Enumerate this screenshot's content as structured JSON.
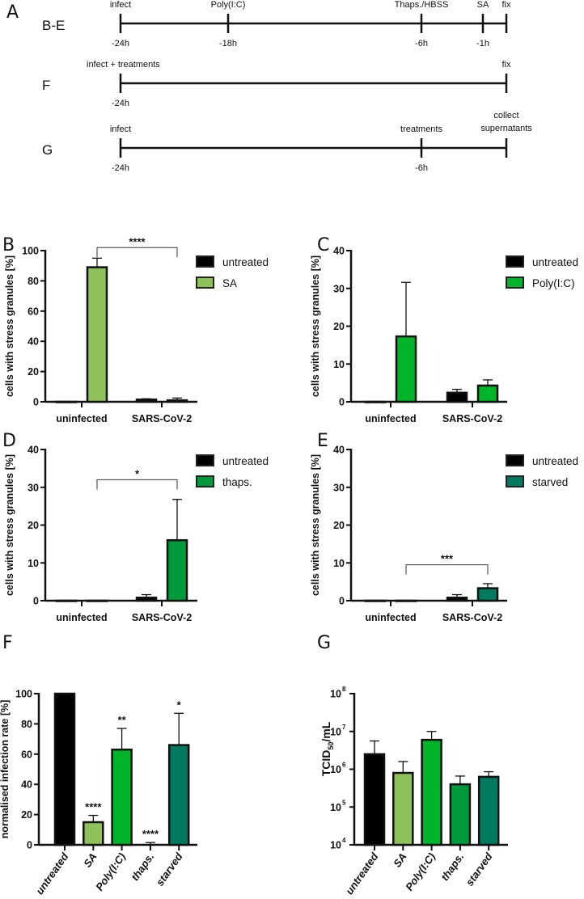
{
  "panel_letters": {
    "A": "A",
    "B": "B",
    "C": "C",
    "D": "D",
    "E": "E",
    "F": "F",
    "G": "G"
  },
  "timelines": [
    {
      "label": "B-E",
      "events": [
        {
          "top": "infect",
          "bottom": "-24h",
          "time_h": -24
        },
        {
          "top": "Poly(I:C)",
          "bottom": "-18h",
          "time_h": -18
        },
        {
          "top": "Thaps./HBSS",
          "bottom": "-6h",
          "time_h": -6
        },
        {
          "top": "SA",
          "bottom": "-1h",
          "time_h": -1
        },
        {
          "top": "fix",
          "bottom": "",
          "time_h": 0
        }
      ]
    },
    {
      "label": "F",
      "events": [
        {
          "top": "infect + treatments",
          "bottom": "-24h",
          "time_h": -24
        },
        {
          "top": "fix",
          "bottom": "",
          "time_h": 0
        }
      ]
    },
    {
      "label": "G",
      "events": [
        {
          "top": "infect",
          "bottom": "-24h",
          "time_h": -24
        },
        {
          "top": "treatments",
          "bottom": "-6h",
          "time_h": -6
        },
        {
          "top": "collect supernatants",
          "top_lines": [
            "collect",
            "supernatants"
          ],
          "bottom": "",
          "time_h": 0
        }
      ]
    }
  ],
  "chart_data": [
    {
      "panel": "B",
      "type": "bar",
      "categories": [
        "uninfected",
        "SARS-CoV-2"
      ],
      "series": [
        {
          "name": "untreated",
          "values": [
            0,
            1.5
          ],
          "errors": [
            0,
            0.5
          ],
          "color": "#000000"
        },
        {
          "name": "SA",
          "values": [
            89,
            1
          ],
          "errors": [
            6,
            1.5
          ],
          "color": "#8fc15a"
        }
      ],
      "ylabel": "cells with stress granules [%]",
      "ylim": [
        0,
        100
      ],
      "yticks": [
        0,
        20,
        40,
        60,
        80,
        100
      ],
      "significance": [
        {
          "label": "****",
          "between": [
            "uninfected SA",
            "SARS-CoV-2 SA"
          ],
          "level": 102
        }
      ],
      "legend": "right"
    },
    {
      "panel": "C",
      "type": "bar",
      "categories": [
        "uninfected",
        "SARS-CoV-2"
      ],
      "series": [
        {
          "name": "untreated",
          "values": [
            0,
            2.4
          ],
          "errors": [
            0,
            0.9
          ],
          "color": "#000000"
        },
        {
          "name": "Poly(I:C)",
          "values": [
            17.3,
            4.3
          ],
          "errors": [
            14.3,
            1.5
          ],
          "color": "#00b52a"
        }
      ],
      "ylabel": "cells with stress granules [%]",
      "ylim": [
        0,
        40
      ],
      "yticks": [
        0,
        10,
        20,
        30,
        40
      ],
      "significance": [],
      "legend": "right"
    },
    {
      "panel": "D",
      "type": "bar",
      "categories": [
        "uninfected",
        "SARS-CoV-2"
      ],
      "series": [
        {
          "name": "untreated",
          "values": [
            0,
            0.8
          ],
          "errors": [
            0,
            0.8
          ],
          "color": "#000000"
        },
        {
          "name": "thaps.",
          "values": [
            0,
            16
          ],
          "errors": [
            0,
            10.8
          ],
          "color": "#009a3c"
        }
      ],
      "ylabel": "cells with stress granules [%]",
      "ylim": [
        0,
        40
      ],
      "yticks": [
        0,
        10,
        20,
        30,
        40
      ],
      "significance": [
        {
          "label": "*",
          "between": [
            "uninfected thaps.",
            "SARS-CoV-2 thaps."
          ],
          "level": 32
        }
      ],
      "legend": "right"
    },
    {
      "panel": "E",
      "type": "bar",
      "categories": [
        "uninfected",
        "SARS-CoV-2"
      ],
      "series": [
        {
          "name": "untreated",
          "values": [
            0,
            0.8
          ],
          "errors": [
            0,
            0.8
          ],
          "color": "#000000"
        },
        {
          "name": "starved",
          "values": [
            0,
            3.3
          ],
          "errors": [
            0,
            1.2
          ],
          "color": "#007a5e"
        }
      ],
      "ylabel": "cells with stress granules [%]",
      "ylim": [
        0,
        40
      ],
      "yticks": [
        0,
        10,
        20,
        30,
        40
      ],
      "significance": [
        {
          "label": "***",
          "between": [
            "uninfected starved",
            "SARS-CoV-2 starved"
          ],
          "level": 9.5
        }
      ],
      "legend": "right"
    },
    {
      "panel": "F",
      "type": "bar",
      "categories": [
        "untreated",
        "SA",
        "Poly(I:C)",
        "thaps.",
        "starved"
      ],
      "values": [
        100,
        15,
        63,
        0,
        66
      ],
      "errors": [
        0,
        4.5,
        14,
        1.5,
        21
      ],
      "colors": [
        "#000000",
        "#8fc15a",
        "#00b52a",
        "#009a3c",
        "#007a5e"
      ],
      "significance": [
        "",
        "****",
        "**",
        "****",
        "*"
      ],
      "ylabel": "normalised infection rate [%]",
      "ylim": [
        0,
        100
      ],
      "yticks": [
        0,
        20,
        40,
        60,
        80,
        100
      ]
    },
    {
      "panel": "G",
      "type": "bar",
      "scale": "log",
      "categories": [
        "untreated",
        "SA",
        "Poly(I:C)",
        "thaps.",
        "starved"
      ],
      "values": [
        2500000,
        800000,
        6000000,
        400000,
        630000
      ],
      "error_upper": [
        5600000,
        1600000,
        10000000,
        660000,
        860000
      ],
      "colors": [
        "#000000",
        "#8fc15a",
        "#00b52a",
        "#009a3c",
        "#007a5e"
      ],
      "ylabel": {
        "main": "TCID",
        "sub": "50",
        "tail": "/mL"
      },
      "ylim": [
        10000,
        100000000
      ],
      "yticks": [
        {
          "base": "10",
          "exp": "4"
        },
        {
          "base": "10",
          "exp": "5"
        },
        {
          "base": "10",
          "exp": "6"
        },
        {
          "base": "10",
          "exp": "7"
        },
        {
          "base": "10",
          "exp": "8"
        }
      ]
    }
  ]
}
